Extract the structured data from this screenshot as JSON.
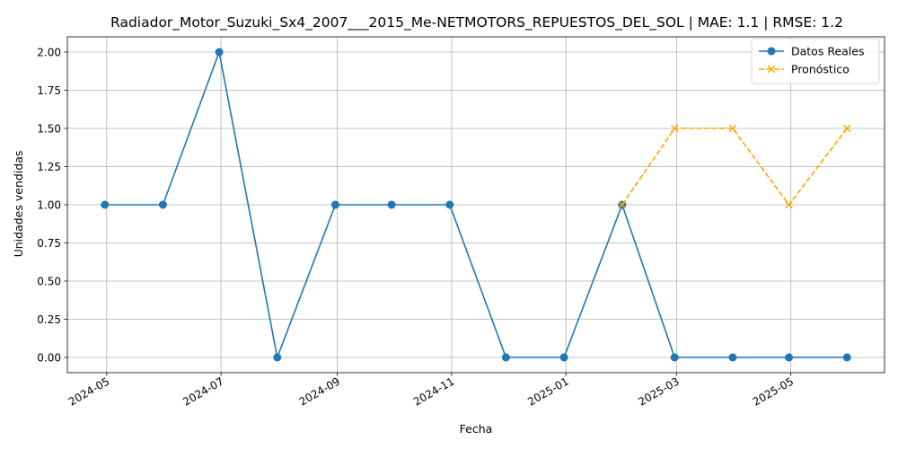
{
  "chart_data": {
    "type": "line",
    "title": "Radiador_Motor_Suzuki_Sx4_2007___2015_Me-NETMOTORS_REPUESTOS_DEL_SOL | MAE: 1.1 | RMSE: 1.2",
    "xlabel": "Fecha",
    "ylabel": "Unidades vendidas",
    "xlim": [
      "2024-04-10",
      "2025-06-20"
    ],
    "ylim": [
      -0.1,
      2.1
    ],
    "grid": true,
    "legend_position": "top-right",
    "x_ticks": [
      "2024-05",
      "2024-07",
      "2024-09",
      "2024-11",
      "2025-01",
      "2025-03",
      "2025-05"
    ],
    "y_ticks": [
      "0.00",
      "0.25",
      "0.50",
      "0.75",
      "1.00",
      "1.25",
      "1.50",
      "1.75",
      "2.00"
    ],
    "series": [
      {
        "name": "Datos Reales",
        "color": "#1f77b4",
        "style": "solid",
        "marker": "circle",
        "points": [
          {
            "x": "2024-04-30",
            "y": 1
          },
          {
            "x": "2024-05-31",
            "y": 1
          },
          {
            "x": "2024-06-30",
            "y": 2
          },
          {
            "x": "2024-07-31",
            "y": 0
          },
          {
            "x": "2024-08-31",
            "y": 1
          },
          {
            "x": "2024-09-30",
            "y": 1
          },
          {
            "x": "2024-10-31",
            "y": 1
          },
          {
            "x": "2024-11-30",
            "y": 0
          },
          {
            "x": "2024-12-31",
            "y": 0
          },
          {
            "x": "2025-01-31",
            "y": 1
          },
          {
            "x": "2025-02-28",
            "y": 0
          },
          {
            "x": "2025-03-31",
            "y": 0
          },
          {
            "x": "2025-04-30",
            "y": 0
          },
          {
            "x": "2025-05-31",
            "y": 0
          }
        ]
      },
      {
        "name": "Pronóstico",
        "color": "#ffa500",
        "style": "dashed",
        "marker": "x",
        "points": [
          {
            "x": "2025-01-31",
            "y": 1
          },
          {
            "x": "2025-02-28",
            "y": 1.5
          },
          {
            "x": "2025-03-31",
            "y": 1.5
          },
          {
            "x": "2025-04-30",
            "y": 1
          },
          {
            "x": "2025-05-31",
            "y": 1.5
          }
        ]
      }
    ]
  }
}
